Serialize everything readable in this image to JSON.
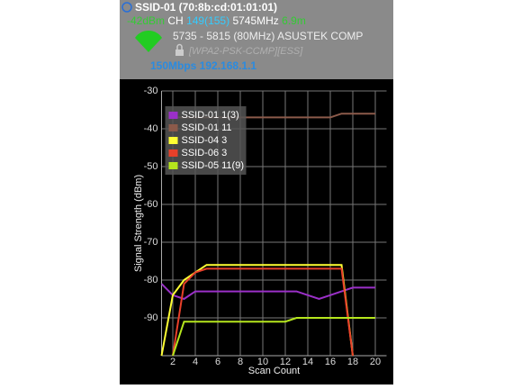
{
  "header": {
    "ssid": "SSID-01 (70:8b:cd:01:01:01)",
    "signal": "-42dBm",
    "ch_label": "CH",
    "channel": "149(155)",
    "frequency": "5745MHz",
    "distance": "6.9m",
    "range": "5735 - 5815 (80MHz)",
    "vendor": "ASUSTEK COMP",
    "security": "[WPA2-PSK-CCMP][ESS]",
    "rate_ip": "150Mbps 192.168.1.1"
  },
  "chart_data": {
    "type": "line",
    "xlabel": "Scan Count",
    "ylabel": "Signal Strength (dBm)",
    "x": [
      1,
      2,
      3,
      4,
      5,
      6,
      7,
      8,
      9,
      10,
      11,
      12,
      13,
      14,
      15,
      16,
      17,
      18,
      19,
      20
    ],
    "xlim": [
      1,
      21
    ],
    "xticks": [
      2,
      4,
      6,
      8,
      10,
      12,
      14,
      16,
      18,
      20
    ],
    "ylim": [
      -100,
      -30
    ],
    "yticks": [
      -30,
      -40,
      -50,
      -60,
      -70,
      -80,
      -90
    ],
    "grid": true,
    "legend": "upper left",
    "series": [
      {
        "name": "SSID-01 1(3)",
        "color": "#9b30c8",
        "values": [
          -81,
          -84,
          -85,
          -83,
          -83,
          -83,
          -83,
          -83,
          -83,
          -83,
          -83,
          -83,
          -83,
          -84,
          -85,
          -84,
          -83,
          -82,
          -82,
          -82
        ]
      },
      {
        "name": "SSID-01 11",
        "color": "#8b5a4a",
        "values": [
          null,
          -37,
          -37,
          -37,
          -37,
          -37,
          -37,
          -37,
          -37,
          -37,
          -37,
          -37,
          -37,
          -37,
          -37,
          -37,
          -36,
          -36,
          -36,
          -36
        ]
      },
      {
        "name": "SSID-04 3",
        "color": "#ffff33",
        "values": [
          -100,
          -84,
          -80,
          -78,
          -76,
          -76,
          -76,
          -76,
          -76,
          -76,
          -76,
          -76,
          -76,
          -76,
          -76,
          -76,
          -76,
          -100,
          null,
          null
        ]
      },
      {
        "name": "SSID-06 3",
        "color": "#e8402a",
        "values": [
          null,
          -100,
          -81,
          -78,
          -77,
          -77,
          -77,
          -77,
          -77,
          -77,
          -77,
          -77,
          -77,
          -77,
          -77,
          -77,
          -77,
          -100,
          null,
          null
        ]
      },
      {
        "name": "SSID-05 11(9)",
        "color": "#b5e61d",
        "values": [
          null,
          -100,
          -91,
          -91,
          -91,
          -91,
          -91,
          -91,
          -91,
          -91,
          -91,
          -91,
          -90,
          -90,
          -90,
          -90,
          -90,
          -90,
          -90,
          -90
        ]
      }
    ]
  }
}
